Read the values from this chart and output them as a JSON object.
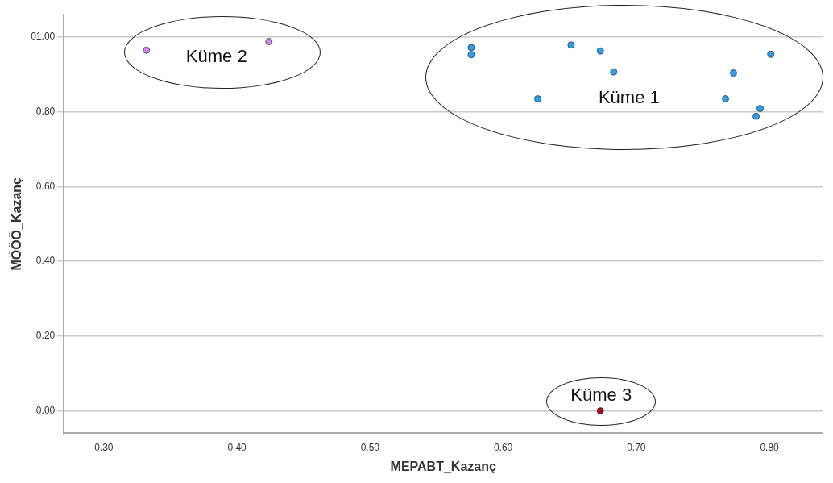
{
  "chart_data": {
    "type": "scatter",
    "xlabel": "MEPABT_Kazanç",
    "ylabel": "MÖÖÖ_Kazanç",
    "xlim": [
      0.27,
      0.84
    ],
    "xticks": [
      {
        "value": 0.3,
        "label": "0.30"
      },
      {
        "value": 0.4,
        "label": "0.40"
      },
      {
        "value": 0.5,
        "label": "0.50"
      },
      {
        "value": 0.6,
        "label": "0.60"
      },
      {
        "value": 0.7,
        "label": "0.70"
      },
      {
        "value": 0.8,
        "label": "0.80"
      }
    ],
    "ylim": [
      -0.06,
      1.06
    ],
    "yticks": [
      {
        "value": 0,
        "label": "0.00"
      },
      {
        "value": 0.2,
        "label": "0.20"
      },
      {
        "value": 0.4,
        "label": "0.40"
      },
      {
        "value": 0.6,
        "label": "0.60"
      },
      {
        "value": 0.8,
        "label": "0.80"
      },
      {
        "value": 1,
        "label": "01.00"
      }
    ],
    "grid": "y",
    "legend": false,
    "marker": "circle",
    "series": [
      {
        "color": "#2e9fe8",
        "x": [
          0.576,
          0.576,
          0.651,
          0.673,
          0.683,
          0.626,
          0.773,
          0.801,
          0.767,
          0.793,
          0.79
        ],
        "values": [
          0.972,
          0.953,
          0.979,
          0.963,
          0.907,
          0.835,
          0.904,
          0.954,
          0.835,
          0.809,
          0.788
        ]
      },
      {
        "color": "#d685e8",
        "x": [
          0.332,
          0.424
        ],
        "values": [
          0.965,
          0.988
        ]
      },
      {
        "color": "#a50f15",
        "x": [
          0.673
        ],
        "values": [
          0
        ]
      }
    ],
    "annotations": [
      "Küme 1",
      "Küme 2",
      "Küme 3"
    ]
  }
}
